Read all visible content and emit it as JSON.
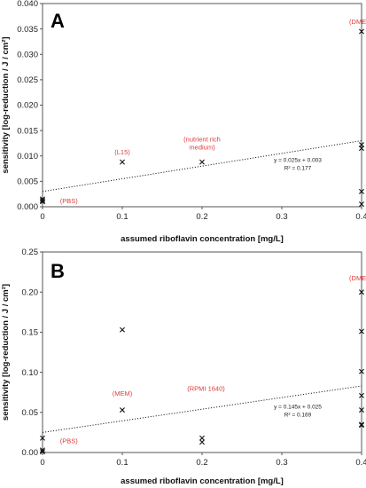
{
  "chart_data": [
    {
      "type": "scatter",
      "panel_label": "A",
      "xlabel": "assumed riboflavin concentration [mg/L]",
      "ylabel": "sensitivity [log-reduction / J / cm²]",
      "xlim": [
        0,
        0.4
      ],
      "ylim": [
        0,
        0.04
      ],
      "x_ticks": [
        0,
        0.1,
        0.2,
        0.3,
        0.4
      ],
      "x_tick_labels": [
        "0",
        "0.1",
        "0.2",
        "0.3",
        "0.4"
      ],
      "y_ticks": [
        0,
        0.005,
        0.01,
        0.015,
        0.02,
        0.025,
        0.03,
        0.035,
        0.04
      ],
      "y_tick_labels": [
        "0.000",
        "0.005",
        "0.010",
        "0.015",
        "0.020",
        "0.025",
        "0.030",
        "0.035",
        "0.040"
      ],
      "grid": false,
      "points": [
        {
          "x": 0,
          "y": 0.0015
        },
        {
          "x": 0,
          "y": 0.0012
        },
        {
          "x": 0,
          "y": 0.001
        },
        {
          "x": 0.1,
          "y": 0.0088
        },
        {
          "x": 0.2,
          "y": 0.0088
        },
        {
          "x": 0.4,
          "y": 0.0345
        },
        {
          "x": 0.4,
          "y": 0.0122
        },
        {
          "x": 0.4,
          "y": 0.0115
        },
        {
          "x": 0.4,
          "y": 0.003
        },
        {
          "x": 0.4,
          "y": 0.0005
        }
      ],
      "trendline": {
        "slope": 0.025,
        "intercept": 0.003,
        "style": "dotted"
      },
      "equation_lines": [
        "y = 0.025x + 0.003",
        "R² = 0.177"
      ],
      "annotations": [
        {
          "lines": [
            "(DMEM)"
          ],
          "x": 0.4,
          "y": 0.0365
        },
        {
          "lines": [
            "(L15)"
          ],
          "x": 0.1,
          "y": 0.0108
        },
        {
          "lines": [
            "(nutrient rich",
            "medium)"
          ],
          "x": 0.2,
          "y": 0.0134
        },
        {
          "lines": [
            "(PBS)"
          ],
          "x": 0.022,
          "y": 0.0012
        }
      ],
      "equation_position": {
        "x": 0.3,
        "y": 0.0088
      }
    },
    {
      "type": "scatter",
      "panel_label": "B",
      "xlabel": "assumed riboflavin concentration [mg/L]",
      "ylabel": "sensitivity [log-reduction / J / cm²]",
      "xlim": [
        0,
        0.4
      ],
      "ylim": [
        0,
        0.25
      ],
      "x_ticks": [
        0,
        0.1,
        0.2,
        0.3,
        0.4
      ],
      "x_tick_labels": [
        "0",
        "0.1",
        "0.2",
        "0.3",
        "0.4"
      ],
      "y_ticks": [
        0,
        0.05,
        0.1,
        0.15,
        0.2,
        0.25
      ],
      "y_tick_labels": [
        "0.00",
        "0.05",
        "0.10",
        "0.15",
        "0.20",
        "0.25"
      ],
      "grid": false,
      "points": [
        {
          "x": 0,
          "y": 0.018
        },
        {
          "x": 0,
          "y": 0.003
        },
        {
          "x": 0,
          "y": 0.001
        },
        {
          "x": 0.1,
          "y": 0.153
        },
        {
          "x": 0.1,
          "y": 0.053
        },
        {
          "x": 0.2,
          "y": 0.018
        },
        {
          "x": 0.2,
          "y": 0.013
        },
        {
          "x": 0.4,
          "y": 0.2
        },
        {
          "x": 0.4,
          "y": 0.151
        },
        {
          "x": 0.4,
          "y": 0.101
        },
        {
          "x": 0.4,
          "y": 0.071
        },
        {
          "x": 0.4,
          "y": 0.053
        },
        {
          "x": 0.4,
          "y": 0.035
        },
        {
          "x": 0.4,
          "y": 0.034
        }
      ],
      "trendline": {
        "slope": 0.145,
        "intercept": 0.025,
        "style": "dotted"
      },
      "equation_lines": [
        "y = 0.145x + 0.025",
        "R² = 0.169"
      ],
      "annotations": [
        {
          "lines": [
            "(DMEM)"
          ],
          "x": 0.4,
          "y": 0.218
        },
        {
          "lines": [
            "(MEM)"
          ],
          "x": 0.1,
          "y": 0.074
        },
        {
          "lines": [
            "(RPMI 1640)"
          ],
          "x": 0.205,
          "y": 0.08
        },
        {
          "lines": [
            "(PBS)"
          ],
          "x": 0.022,
          "y": 0.015
        }
      ],
      "equation_position": {
        "x": 0.3,
        "y": 0.055
      }
    }
  ],
  "colors": {
    "annotation": "#e03a3a",
    "axis": "#555555",
    "marker": "#111111",
    "trendline": "#222222"
  }
}
